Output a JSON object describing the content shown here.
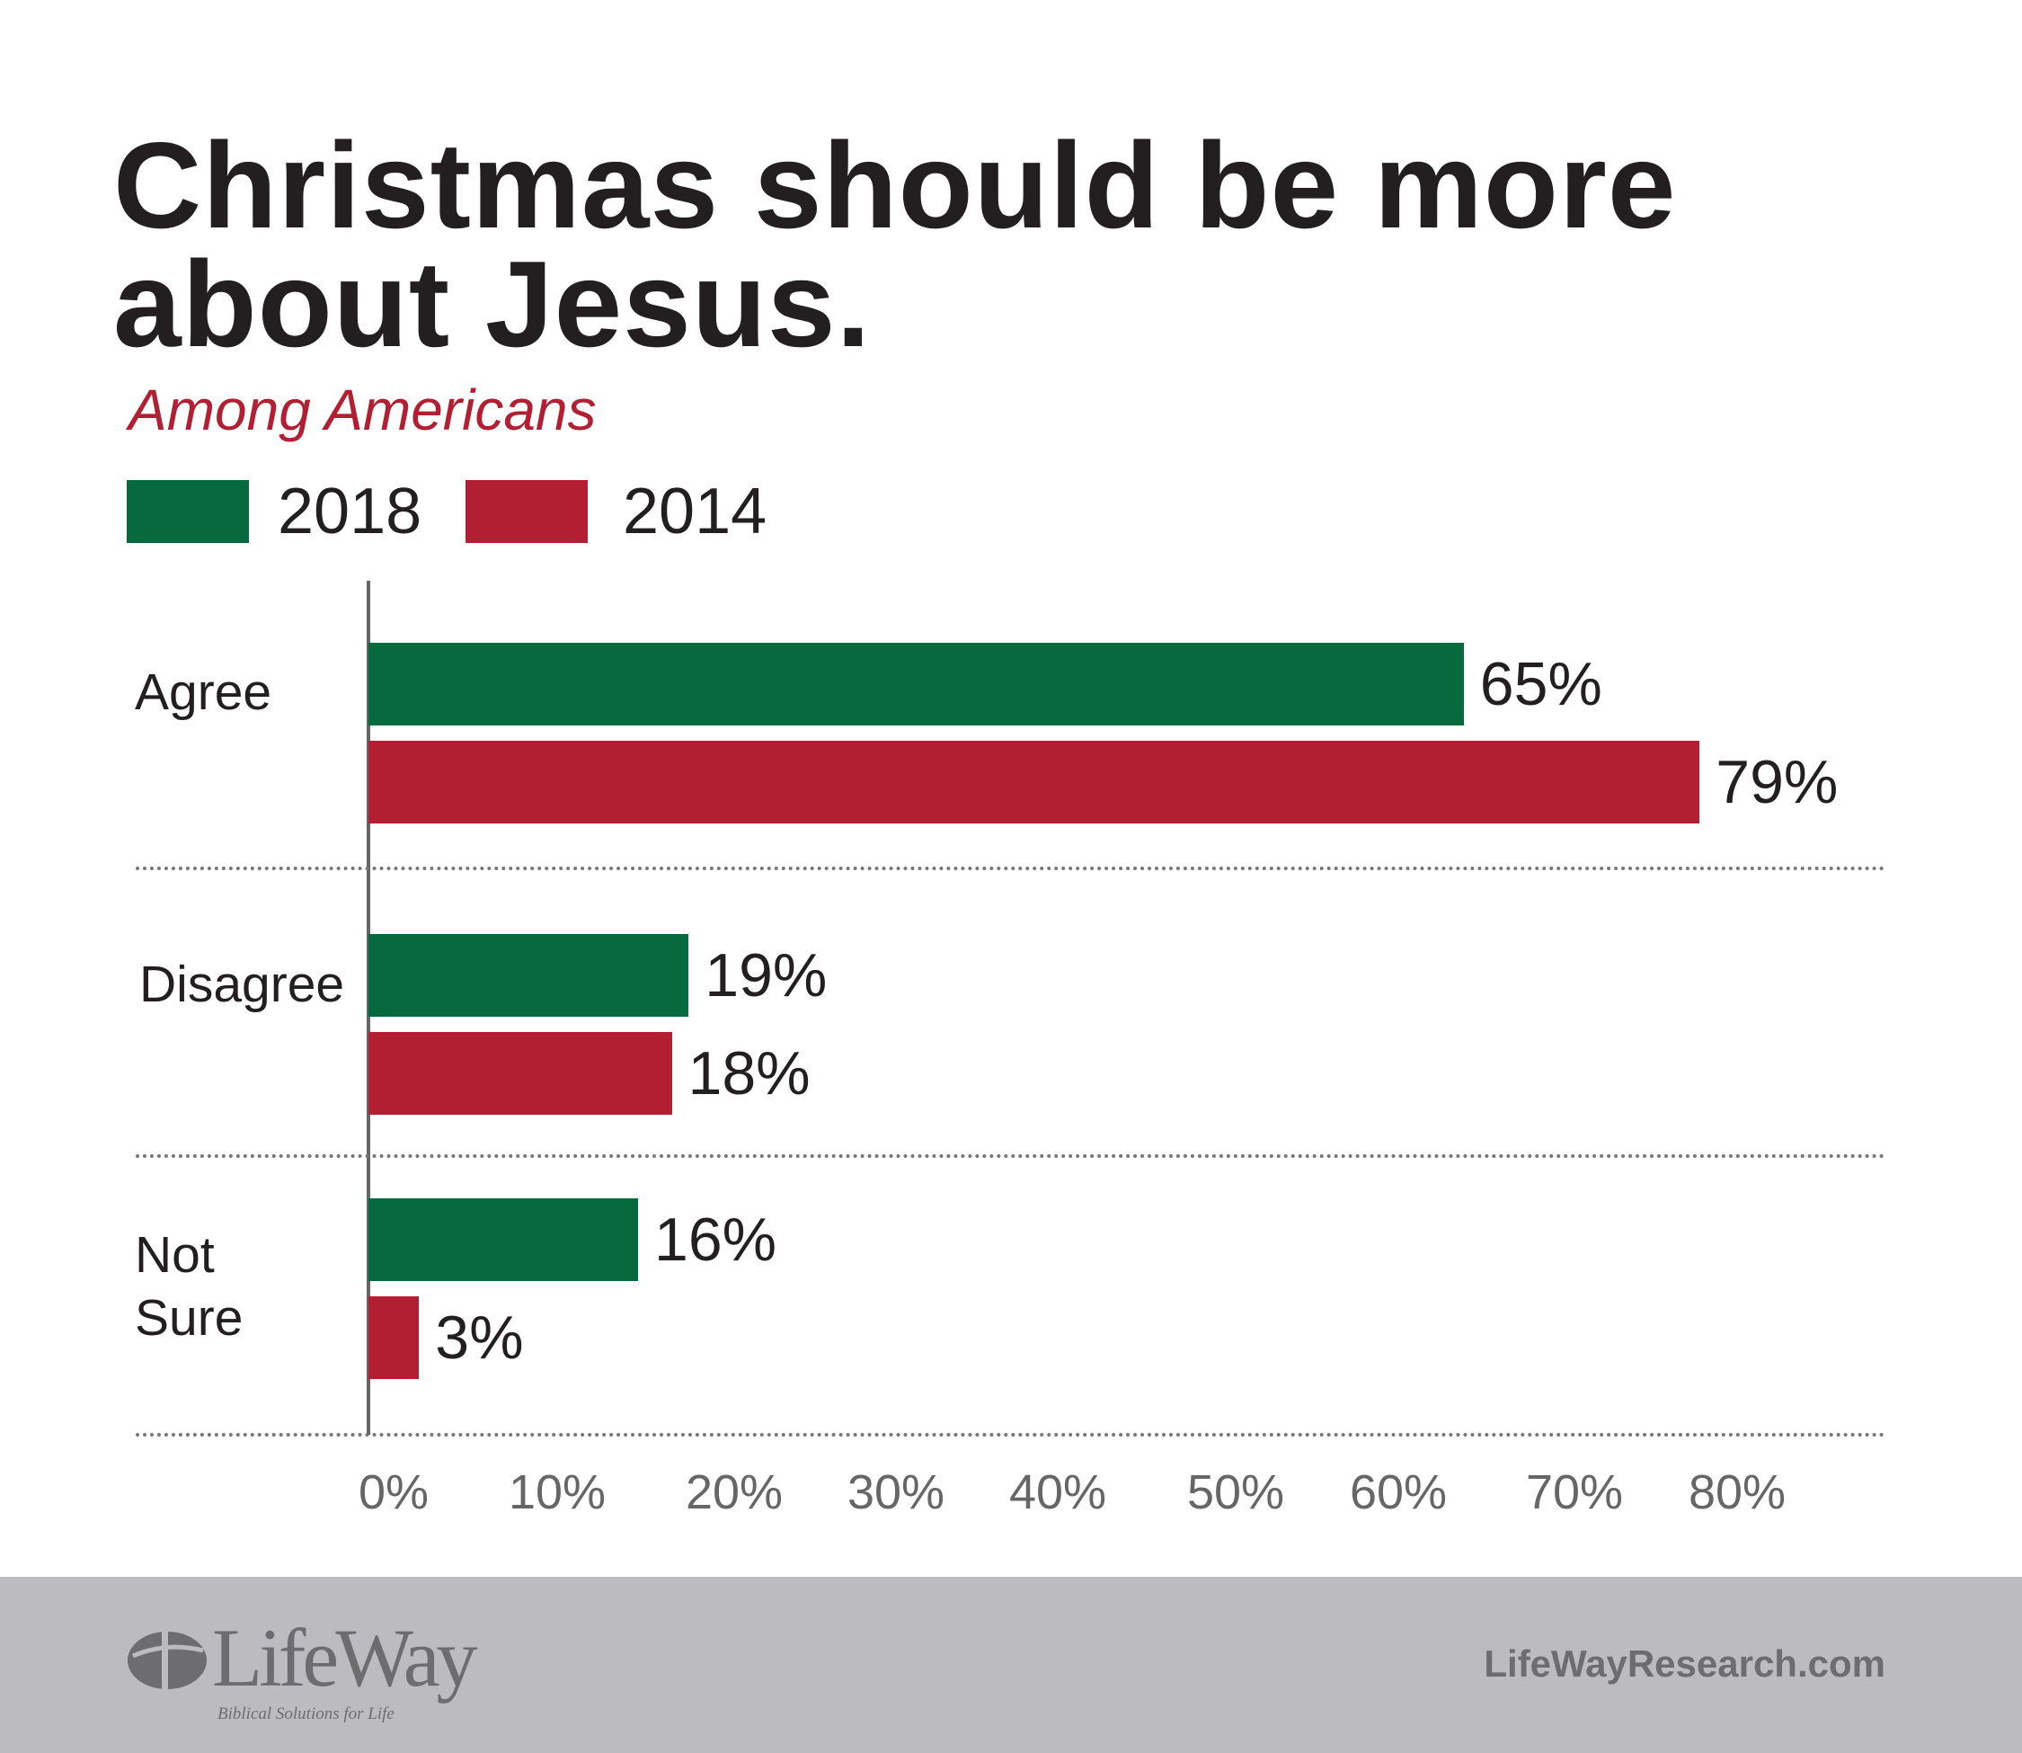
{
  "header": {
    "title_line1": "Christmas should be more",
    "title_line2": "about Jesus.",
    "subtitle": "Among Americans"
  },
  "footer": {
    "logo_text": "LifeWay",
    "logo_tagline": "Biblical Solutions for Life",
    "url": "LifeWayResearch.com"
  },
  "chart_data": {
    "type": "bar",
    "orientation": "horizontal",
    "title": "Christmas should be more about Jesus.",
    "subtitle": "Among Americans",
    "categories": [
      "Agree",
      "Disagree",
      "Not Sure"
    ],
    "category_lines": [
      [
        "Agree"
      ],
      [
        "Disagree"
      ],
      [
        "Not",
        "Sure"
      ]
    ],
    "series": [
      {
        "name": "2018",
        "color": "#066a3e",
        "values": [
          65,
          19,
          16
        ],
        "labels": [
          "65%",
          "19%",
          "16%"
        ]
      },
      {
        "name": "2014",
        "color": "#b21f33",
        "values": [
          79,
          18,
          3
        ],
        "labels": [
          "79%",
          "18%",
          "3%"
        ]
      }
    ],
    "xlim": [
      0,
      80
    ],
    "x_ticks": [
      "0%",
      "10%",
      "20%",
      "30%",
      "40%",
      "50%",
      "60%",
      "70%",
      "80%"
    ],
    "legend": "top-left",
    "grid": false
  }
}
